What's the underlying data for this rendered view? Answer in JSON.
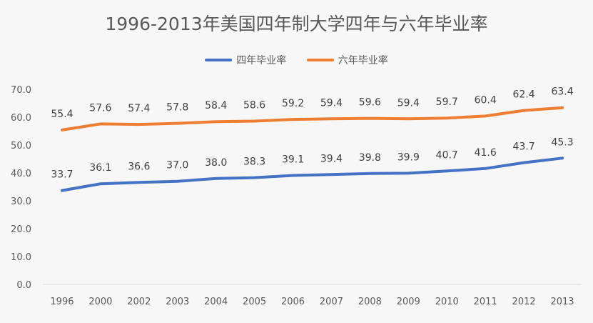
{
  "colors": {
    "series1": "#4472c4",
    "series2": "#ed7d31",
    "text": "#595959",
    "background": "#f7f7f7"
  },
  "chart_data": {
    "type": "line",
    "title": "1996-2013年美国四年制大学四年与六年毕业率",
    "categories": [
      "1996",
      "2000",
      "2002",
      "2003",
      "2004",
      "2005",
      "2006",
      "2007",
      "2008",
      "2009",
      "2010",
      "2011",
      "2012",
      "2013"
    ],
    "series": [
      {
        "name": "四年毕业率",
        "values": [
          33.7,
          36.1,
          36.6,
          37.0,
          38.0,
          38.3,
          39.1,
          39.4,
          39.8,
          39.9,
          40.7,
          41.6,
          43.7,
          45.3
        ]
      },
      {
        "name": "六年毕业率",
        "values": [
          55.4,
          57.6,
          57.4,
          57.8,
          58.4,
          58.6,
          59.2,
          59.4,
          59.6,
          59.4,
          59.7,
          60.4,
          62.4,
          63.4
        ]
      }
    ],
    "ylim": [
      0,
      70
    ],
    "yticks": [
      "0.0",
      "10.0",
      "20.0",
      "30.0",
      "40.0",
      "50.0",
      "60.0",
      "70.0"
    ],
    "grid": false,
    "legend_position": "top"
  }
}
